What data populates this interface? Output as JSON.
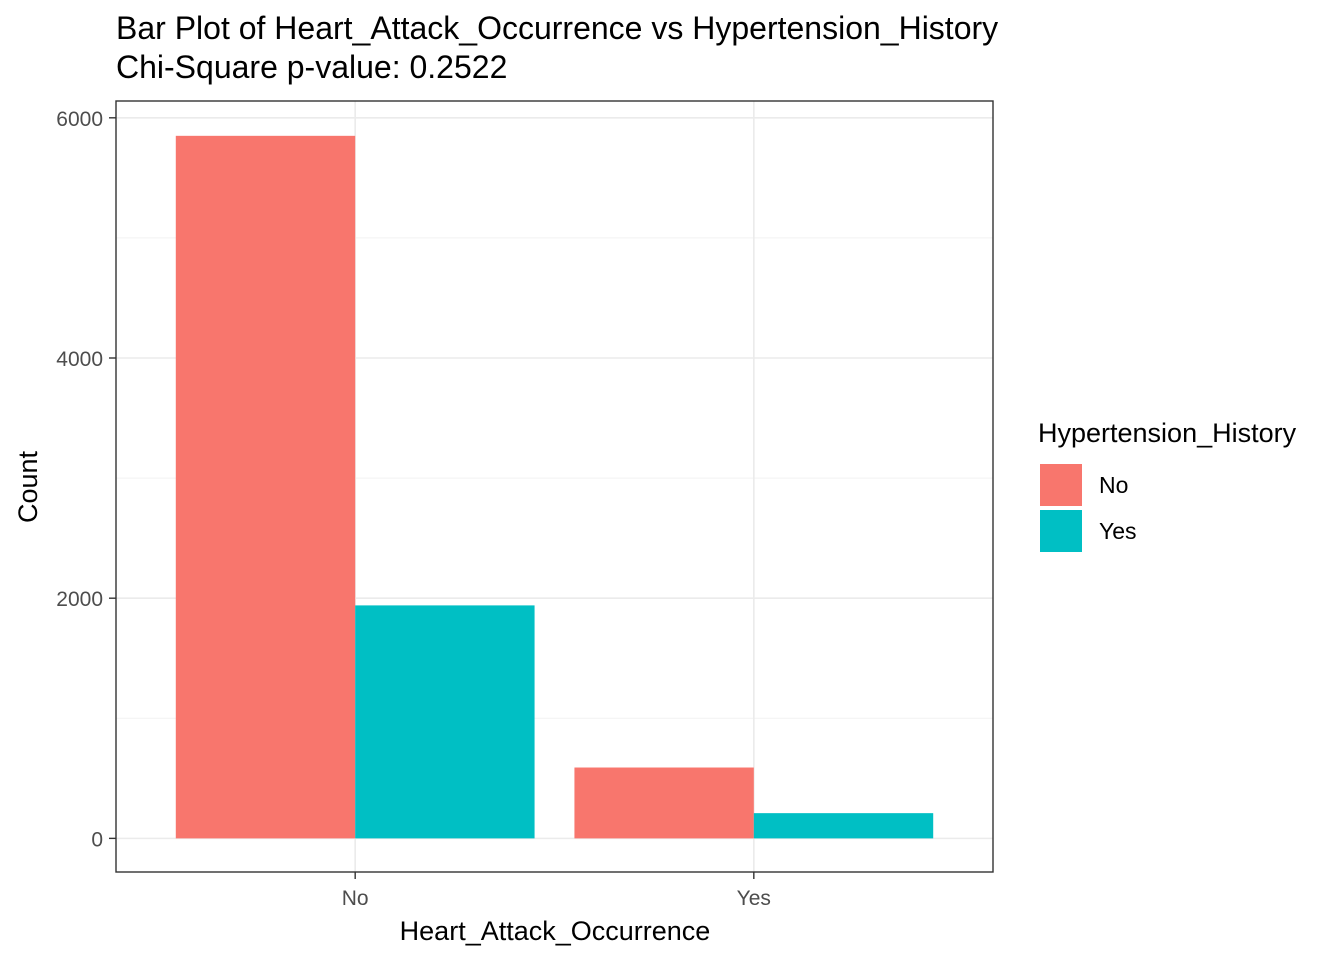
{
  "chart_data": {
    "type": "bar",
    "title": "Bar Plot of Heart_Attack_Occurrence vs Hypertension_History",
    "subtitle": "Chi-Square p-value: 0.2522",
    "xlabel": "Heart_Attack_Occurrence",
    "ylabel": "Count",
    "categories": [
      "No",
      "Yes"
    ],
    "series": [
      {
        "name": "No",
        "values": [
          5850,
          590
        ],
        "color": "#F8766D"
      },
      {
        "name": "Yes",
        "values": [
          1940,
          210
        ],
        "color": "#00BFC4"
      }
    ],
    "ylim": [
      -280,
      6140
    ],
    "yticks": [
      0,
      2000,
      4000,
      6000
    ],
    "yticks_labels": [
      "0",
      "2000",
      "4000",
      "6000"
    ],
    "legend": {
      "title": "Hypertension_History",
      "placement": "right"
    },
    "grid": true
  }
}
